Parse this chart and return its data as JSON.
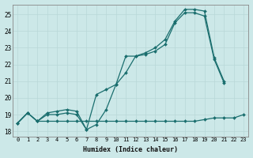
{
  "xlabel": "Humidex (Indice chaleur)",
  "bg_color": "#cce8e8",
  "grid_color": "#b8d8d8",
  "line_color": "#1a6e6e",
  "xlim": [
    -0.5,
    23.5
  ],
  "ylim": [
    17.7,
    25.6
  ],
  "yticks": [
    18,
    19,
    20,
    21,
    22,
    23,
    24,
    25
  ],
  "xticks": [
    0,
    1,
    2,
    3,
    4,
    5,
    6,
    7,
    8,
    9,
    10,
    11,
    12,
    13,
    14,
    15,
    16,
    17,
    18,
    19,
    20,
    21,
    22,
    23
  ],
  "series": [
    {
      "x": [
        0,
        1,
        2,
        3,
        4,
        5,
        6,
        7,
        8,
        9,
        10,
        11,
        12,
        13,
        14,
        15,
        16,
        17,
        18,
        19,
        20,
        21,
        22,
        23
      ],
      "y": [
        18.5,
        19.1,
        18.6,
        18.6,
        18.6,
        18.6,
        18.6,
        18.6,
        18.6,
        18.6,
        18.6,
        18.6,
        18.6,
        18.6,
        18.6,
        18.6,
        18.6,
        18.6,
        18.6,
        18.7,
        18.8,
        18.8,
        18.8,
        19.0
      ]
    },
    {
      "x": [
        0,
        1,
        2,
        3,
        4,
        5,
        6,
        7,
        8,
        9,
        10,
        11,
        12,
        13,
        14,
        15,
        16,
        17,
        18,
        19,
        20,
        21,
        22,
        23
      ],
      "y": [
        18.5,
        19.1,
        18.6,
        19.0,
        19.0,
        19.1,
        19.0,
        18.1,
        18.4,
        19.3,
        20.8,
        21.5,
        22.5,
        22.6,
        22.8,
        23.2,
        24.5,
        25.1,
        25.1,
        24.9,
        22.3,
        20.9,
        null,
        null
      ]
    },
    {
      "x": [
        0,
        1,
        2,
        3,
        4,
        5,
        6,
        7,
        8,
        9,
        10,
        11,
        12,
        13,
        14,
        15,
        16,
        17,
        18,
        19,
        20,
        21,
        22,
        23
      ],
      "y": [
        18.5,
        19.1,
        18.6,
        19.1,
        19.2,
        19.3,
        19.2,
        18.1,
        20.2,
        20.5,
        20.8,
        22.5,
        22.5,
        22.7,
        23.0,
        23.5,
        24.6,
        25.3,
        25.3,
        25.2,
        22.4,
        21.0,
        null,
        null
      ]
    }
  ]
}
